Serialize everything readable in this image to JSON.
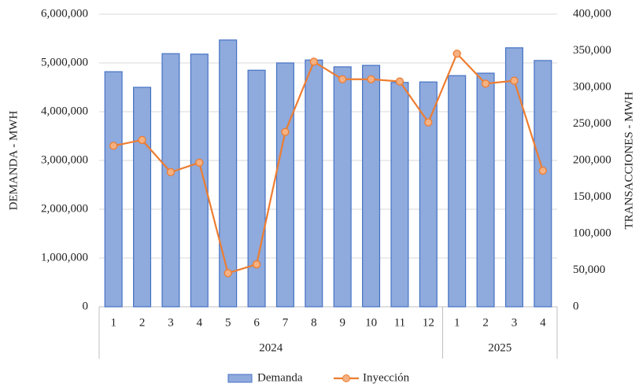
{
  "chart_data": {
    "type": "bar-line",
    "categories": [
      "1",
      "2",
      "3",
      "4",
      "5",
      "6",
      "7",
      "8",
      "9",
      "10",
      "11",
      "12",
      "1",
      "2",
      "3",
      "4"
    ],
    "category_groups": [
      {
        "label": "2024",
        "count": 12
      },
      {
        "label": "2025",
        "count": 4
      }
    ],
    "y_label": "DEMANDA - MWH",
    "y2_label": "TRANSACCIONES - MWH",
    "series": [
      {
        "name": "Demanda",
        "type": "bar",
        "color": "#8faadc",
        "edge_color": "#4472c4",
        "values": [
          4820000,
          4500000,
          5190000,
          5180000,
          5470000,
          4850000,
          5000000,
          5060000,
          4920000,
          4950000,
          4600000,
          4610000,
          4740000,
          4790000,
          5310000,
          5050000
        ]
      },
      {
        "name": "Inyección",
        "type": "line",
        "axis": "y2",
        "color": "#ed7d31",
        "marker_color": "#f4b183",
        "values": [
          220000,
          228000,
          184000,
          197000,
          46000,
          58000,
          239000,
          335000,
          311000,
          311000,
          308000,
          252000,
          346000,
          305000,
          309000,
          186000
        ]
      }
    ],
    "ylim": [
      0,
      6000000
    ],
    "yticks": [
      0,
      {
        "value": 1000000,
        "label": "1,000,000"
      },
      {
        "value": 2000000,
        "label": "2,000,000"
      },
      {
        "value": 3000000,
        "label": "3,000,000"
      },
      {
        "value": 4000000,
        "label": "4,000,000"
      },
      {
        "value": 5000000,
        "label": "5,000,000"
      },
      {
        "value": 6000000,
        "label": "6,000,000"
      }
    ],
    "y2lim": [
      0,
      400000
    ],
    "y2ticks": [
      0,
      {
        "value": 50000,
        "label": "50,000"
      },
      {
        "value": 100000,
        "label": "100,000"
      },
      {
        "value": 150000,
        "label": "150,000"
      },
      {
        "value": 200000,
        "label": "200,000"
      },
      {
        "value": 250000,
        "label": "250,000"
      },
      {
        "value": 300000,
        "label": "300,000"
      },
      {
        "value": 350000,
        "label": "350,000"
      },
      {
        "value": 400000,
        "label": "400,000"
      }
    ],
    "grid": true,
    "legend": "bottom"
  }
}
